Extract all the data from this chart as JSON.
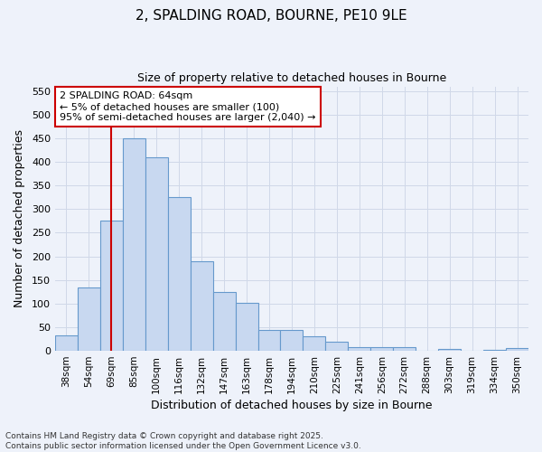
{
  "title_line1": "2, SPALDING ROAD, BOURNE, PE10 9LE",
  "title_line2": "Size of property relative to detached houses in Bourne",
  "xlabel": "Distribution of detached houses by size in Bourne",
  "ylabel": "Number of detached properties",
  "categories": [
    "38sqm",
    "54sqm",
    "69sqm",
    "85sqm",
    "100sqm",
    "116sqm",
    "132sqm",
    "147sqm",
    "163sqm",
    "178sqm",
    "194sqm",
    "210sqm",
    "225sqm",
    "241sqm",
    "256sqm",
    "272sqm",
    "288sqm",
    "303sqm",
    "319sqm",
    "334sqm",
    "350sqm"
  ],
  "values": [
    33,
    135,
    275,
    450,
    410,
    325,
    190,
    125,
    102,
    44,
    44,
    30,
    20,
    7,
    7,
    8,
    0,
    4,
    0,
    2,
    6
  ],
  "bar_color": "#c8d8f0",
  "bar_edge_color": "#6699cc",
  "vline_x": 2,
  "vline_color": "#cc0000",
  "annotation_text": "2 SPALDING ROAD: 64sqm\n← 5% of detached houses are smaller (100)\n95% of semi-detached houses are larger (2,040) →",
  "annotation_box_color": "#ffffff",
  "annotation_box_edge": "#cc0000",
  "ylim": [
    0,
    560
  ],
  "yticks": [
    0,
    50,
    100,
    150,
    200,
    250,
    300,
    350,
    400,
    450,
    500,
    550
  ],
  "grid_color": "#d0d8e8",
  "background_color": "#eef2fa",
  "footer": "Contains HM Land Registry data © Crown copyright and database right 2025.\nContains public sector information licensed under the Open Government Licence v3.0."
}
